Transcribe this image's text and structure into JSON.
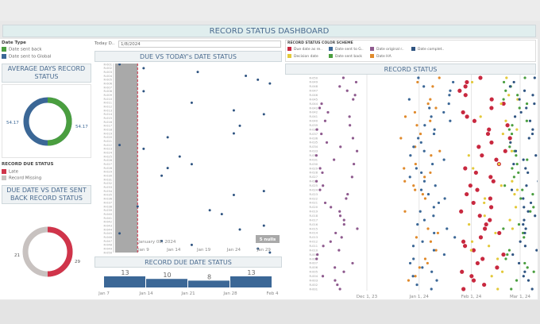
{
  "header": {
    "title": "RECORD STATUS DASHBOARD"
  },
  "filters": {
    "today_label": "Today D..",
    "today_value": "1/8/2024"
  },
  "date_type_legend": {
    "title": "Date Type",
    "items": [
      {
        "label": "Date sent back",
        "color": "#4a9e3f"
      },
      {
        "label": "Date sent to Global",
        "color": "#3b6796"
      }
    ]
  },
  "avg_days": {
    "title": "AVERAGE DAYS RECORD STATUS",
    "left_value": "54.17",
    "right_value": "54.17",
    "colors": [
      "#3b6796",
      "#4a9e3f"
    ]
  },
  "due_status_legend": {
    "title": "RECORD DUE STATUS",
    "items": [
      {
        "label": "Late",
        "color": "#d0344a"
      },
      {
        "label": "Record Missing",
        "color": "#c8c2c0"
      }
    ]
  },
  "due_vs_sent": {
    "title": "DUE DATE VS DATE SENT BACK RECORD STATUS",
    "left_value": "21",
    "right_value": "29",
    "colors": [
      "#c8c2c0",
      "#d0344a"
    ]
  },
  "due_vs_today": {
    "title": "DUE VS TODAY's DATE STATUS",
    "annotation": "January 08, 2024",
    "nulls_badge": "5 nulls",
    "x_ticks": [
      "Jan 9",
      "Jan 14",
      "Jan 19",
      "Jan 24",
      "Jan 29"
    ]
  },
  "color_scheme": {
    "title": "RECORD STATUS COLOR SCHEME",
    "items": [
      {
        "label": "Due date as re..",
        "color": "#c8283f"
      },
      {
        "label": "Date sent to G..",
        "color": "#3b6796"
      },
      {
        "label": "Date original r..",
        "color": "#8e5a8e"
      },
      {
        "label": "Date complet..",
        "color": "#2f5481"
      },
      {
        "label": "Decision date",
        "color": "#e3c93a"
      },
      {
        "label": "Date sent back",
        "color": "#4a9e3f"
      },
      {
        "label": "Date HA",
        "color": "#e08a2c"
      }
    ]
  },
  "record_status": {
    "title": "RECORD STATUS",
    "x_ticks": [
      "Dec 1, 23",
      "Jan 1, 24",
      "Feb 1, 24",
      "Mar 1, 24"
    ]
  },
  "chart_data": [
    {
      "type": "scatter",
      "title": "DUE VS TODAY's DATE STATUS",
      "x_range": [
        "2024-01-04",
        "2024-02-01"
      ],
      "reference_line": "2024-01-08",
      "points": [
        [
          "R-001",
          "2024-01-05"
        ],
        [
          "R-002",
          "2024-01-09"
        ],
        [
          "R-003",
          "2024-01-18"
        ],
        [
          "R-004",
          "2024-01-26"
        ],
        [
          "R-005",
          "2024-01-28"
        ],
        [
          "R-006",
          "2024-01-30"
        ],
        [
          "R-008",
          "2024-01-09"
        ],
        [
          "R-011",
          "2024-01-17"
        ],
        [
          "R-013",
          "2024-01-24"
        ],
        [
          "R-014",
          "2024-01-29"
        ],
        [
          "R-017",
          "2024-01-25"
        ],
        [
          "R-019",
          "2024-01-24"
        ],
        [
          "R-020",
          "2024-01-13"
        ],
        [
          "R-022",
          "2024-01-05"
        ],
        [
          "R-023",
          "2024-01-09"
        ],
        [
          "R-025",
          "2024-01-15"
        ],
        [
          "R-027",
          "2024-01-17"
        ],
        [
          "R-028",
          "2024-01-13"
        ],
        [
          "R-030",
          "2024-01-12"
        ],
        [
          "R-034",
          "2024-01-29"
        ],
        [
          "R-035",
          "2024-01-24"
        ],
        [
          "R-038",
          "2024-01-08"
        ],
        [
          "R-039",
          "2024-01-20"
        ],
        [
          "R-040",
          "2024-01-22"
        ],
        [
          "R-043",
          "2024-01-29"
        ],
        [
          "R-044",
          "2024-01-25"
        ],
        [
          "R-045",
          "2024-01-05"
        ],
        [
          "R-047",
          "2024-01-12"
        ],
        [
          "R-048",
          "2024-01-17"
        ],
        [
          "R-049",
          "2024-01-28"
        ],
        [
          "R-050",
          "2024-01-30"
        ]
      ]
    },
    {
      "type": "bar",
      "title": "RECORD DUE DATE STATUS",
      "categories": [
        "Jan 7",
        "Jan 14",
        "Jan 21",
        "Jan 28"
      ],
      "values": [
        13,
        10,
        8,
        13
      ],
      "x_ticks": [
        "Jan 7",
        "Jan 14",
        "Jan 21",
        "Jan 28",
        "Feb 4"
      ]
    },
    {
      "type": "pie",
      "title": "AVERAGE DAYS RECORD STATUS",
      "values": [
        54.17,
        54.17
      ],
      "labels": [
        "Date sent to Global",
        "Date sent back"
      ]
    },
    {
      "type": "pie",
      "title": "DUE DATE VS DATE SENT BACK RECORD STATUS",
      "values": [
        21,
        29
      ],
      "labels": [
        "Record Missing",
        "Late"
      ]
    },
    {
      "type": "scatter",
      "title": "RECORD STATUS",
      "records": "R-001..R-050",
      "x_ticks": [
        "Dec 1, 23",
        "Jan 1, 24",
        "Feb 1, 24",
        "Mar 1, 24"
      ]
    }
  ]
}
